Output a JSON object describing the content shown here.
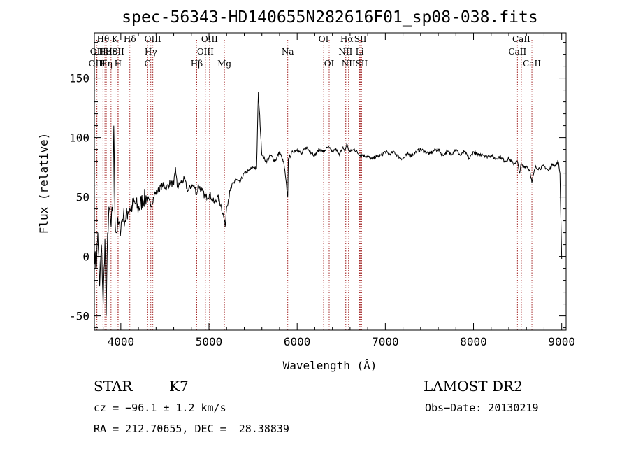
{
  "chart_data": {
    "type": "line",
    "title": "spec-56343-HD140655N282616F01_sp08-038.fits",
    "xlabel": "Wavelength (Å)",
    "ylabel": "Flux (relative)",
    "xlim": [
      3700,
      9050
    ],
    "ylim": [
      -62,
      188
    ],
    "x_ticks": [
      4000,
      5000,
      6000,
      7000,
      8000,
      9000
    ],
    "y_ticks": [
      -50,
      0,
      50,
      100,
      150
    ],
    "grid": false,
    "line_color": "#000000",
    "marker_color": "#a52a2a",
    "series": [
      {
        "x": [
          3700,
          3720,
          3740,
          3760,
          3780,
          3800,
          3820,
          3835,
          3850,
          3870,
          3890,
          3910,
          3920,
          3935,
          3950,
          3970,
          3990,
          4010,
          4030,
          4050,
          4080,
          4100,
          4130,
          4160,
          4200,
          4250,
          4300,
          4340,
          4380,
          4420,
          4470,
          4520,
          4560,
          4600,
          4620,
          4640,
          4680,
          4720,
          4760,
          4800,
          4840,
          4861,
          4880,
          4920,
          4960,
          5010,
          5060,
          5100,
          5140,
          5170,
          5183,
          5200,
          5240,
          5300,
          5350,
          5400,
          5450,
          5500,
          5540,
          5560,
          5600,
          5650,
          5700,
          5750,
          5800,
          5850,
          5893,
          5900,
          5950,
          6000,
          6050,
          6100,
          6150,
          6200,
          6250,
          6300,
          6350,
          6400,
          6450,
          6480,
          6520,
          6540,
          6563,
          6580,
          6600,
          6650,
          6700,
          6750,
          6800,
          6850,
          6900,
          6950,
          7000,
          7050,
          7100,
          7150,
          7200,
          7250,
          7300,
          7350,
          7400,
          7450,
          7500,
          7550,
          7600,
          7650,
          7700,
          7750,
          7800,
          7850,
          7900,
          7950,
          8000,
          8050,
          8100,
          8150,
          8200,
          8250,
          8300,
          8350,
          8400,
          8450,
          8498,
          8520,
          8542,
          8560,
          8600,
          8640,
          8662,
          8700,
          8750,
          8800,
          8850,
          8900,
          8930,
          8960,
          8980,
          9000
        ],
        "y": [
          5,
          -10,
          20,
          -25,
          10,
          -40,
          15,
          -50,
          20,
          40,
          25,
          45,
          110,
          30,
          20,
          28,
          22,
          30,
          35,
          30,
          38,
          40,
          42,
          45,
          40,
          48,
          50,
          42,
          52,
          55,
          60,
          58,
          62,
          60,
          75,
          58,
          62,
          65,
          55,
          60,
          58,
          52,
          60,
          55,
          50,
          52,
          45,
          50,
          42,
          32,
          25,
          42,
          55,
          65,
          62,
          70,
          72,
          75,
          74,
          138,
          85,
          80,
          85,
          80,
          88,
          78,
          50,
          82,
          88,
          90,
          86,
          92,
          88,
          85,
          90,
          88,
          92,
          88,
          90,
          85,
          92,
          88,
          95,
          90,
          88,
          90,
          86,
          85,
          84,
          82,
          84,
          85,
          88,
          86,
          88,
          84,
          82,
          86,
          85,
          88,
          90,
          88,
          86,
          89,
          90,
          85,
          88,
          86,
          90,
          85,
          88,
          82,
          88,
          85,
          86,
          84,
          85,
          82,
          84,
          80,
          82,
          78,
          80,
          70,
          78,
          75,
          76,
          72,
          62,
          75,
          74,
          76,
          72,
          78,
          76,
          80,
          70,
          -2
        ]
      }
    ],
    "lines": [
      {
        "label": "Hθ",
        "x": 3798,
        "row": 0
      },
      {
        "label": "OII",
        "x": 3727,
        "row": 1
      },
      {
        "label": "OIII",
        "x": 3729,
        "row": 2
      },
      {
        "label": "He",
        "x": 3820,
        "row": 1
      },
      {
        "label": "Hη",
        "x": 3835,
        "row": 2
      },
      {
        "label": "Hε",
        "x": 3889,
        "row": 1
      },
      {
        "label": "K",
        "x": 3934,
        "row": 0
      },
      {
        "label": "SII",
        "x": 3970,
        "row": 1
      },
      {
        "label": "H",
        "x": 3968,
        "row": 2
      },
      {
        "label": "Hδ",
        "x": 4102,
        "row": 0
      },
      {
        "label": "OIII",
        "x": 4363,
        "row": 0
      },
      {
        "label": "Hγ",
        "x": 4340,
        "row": 1
      },
      {
        "label": "G",
        "x": 4305,
        "row": 2
      },
      {
        "label": "Hβ",
        "x": 4861,
        "row": 2
      },
      {
        "label": "OIII",
        "x": 5007,
        "row": 0
      },
      {
        "label": "OIII",
        "x": 4959,
        "row": 1
      },
      {
        "label": "Mg",
        "x": 5175,
        "row": 2
      },
      {
        "label": "Na",
        "x": 5893,
        "row": 1
      },
      {
        "label": "OI",
        "x": 6300,
        "row": 0
      },
      {
        "label": "OI",
        "x": 6363,
        "row": 2
      },
      {
        "label": "Hα",
        "x": 6563,
        "row": 0
      },
      {
        "label": "NII",
        "x": 6548,
        "row": 1
      },
      {
        "label": "NII",
        "x": 6583,
        "row": 2
      },
      {
        "label": "SII",
        "x": 6717,
        "row": 0
      },
      {
        "label": "Li",
        "x": 6708,
        "row": 1
      },
      {
        "label": "SII",
        "x": 6731,
        "row": 2
      },
      {
        "label": "CaII",
        "x": 8542,
        "row": 0
      },
      {
        "label": "CaII",
        "x": 8498,
        "row": 1
      },
      {
        "label": "CaII",
        "x": 8662,
        "row": 2
      }
    ]
  },
  "info": {
    "class": "STAR",
    "subclass": "K7",
    "survey": "LAMOST DR2",
    "cz": "cz = −96.1 ± 1.2 km/s",
    "obs_date": "Obs−Date: 20130219",
    "radec": "RA = 212.70655, DEC =  28.38839"
  }
}
